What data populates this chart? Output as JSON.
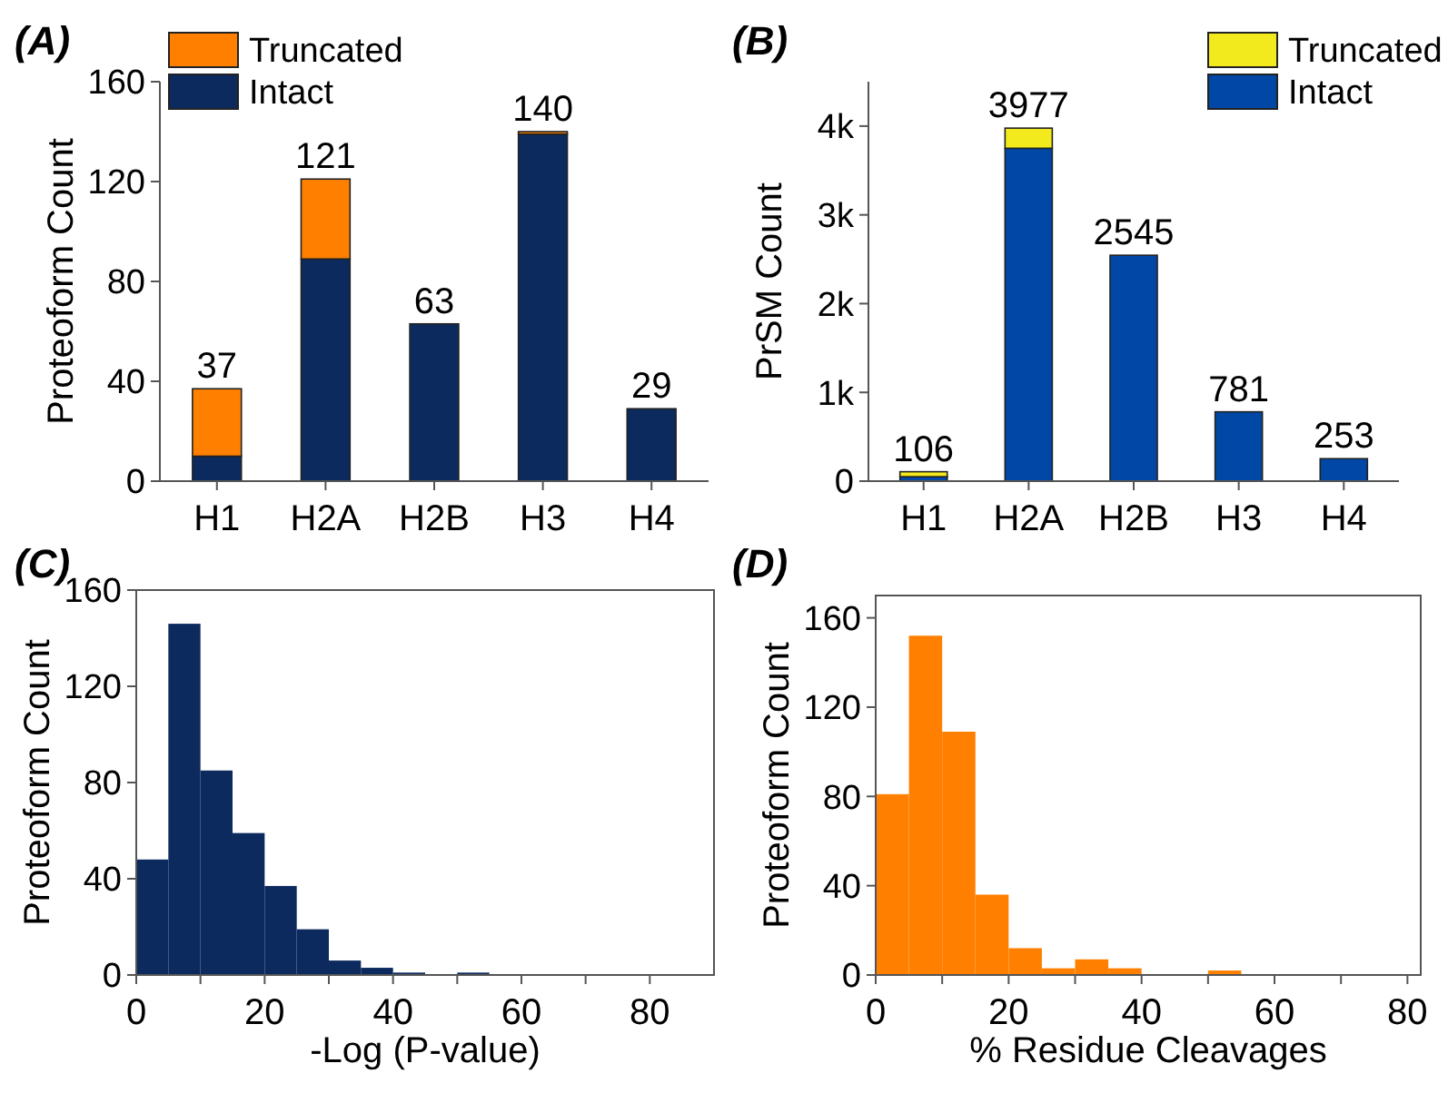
{
  "chart_data": [
    {
      "type": "bar",
      "title": "(A)",
      "ylabel": "Proteoform Count",
      "categories": [
        "H1",
        "H2A",
        "H2B",
        "H3",
        "H4"
      ],
      "stacked": true,
      "legend": "top left",
      "ylim": [
        0,
        160
      ],
      "yticks": [
        0,
        40,
        80,
        120,
        160
      ],
      "totals": [
        "37",
        "121",
        "63",
        "140",
        "29"
      ],
      "series": [
        {
          "name": "Intact",
          "color": "#0c2a5e",
          "values": [
            10,
            89,
            63,
            139,
            29
          ]
        },
        {
          "name": "Truncated",
          "color": "#ff8000",
          "values": [
            27,
            32,
            0,
            1,
            0
          ]
        }
      ]
    },
    {
      "type": "bar",
      "title": "(B)",
      "ylabel": "PrSM Count",
      "categories": [
        "H1",
        "H2A",
        "H2B",
        "H3",
        "H4"
      ],
      "stacked": true,
      "legend": "top right",
      "ylim": [
        0,
        4500
      ],
      "yticks": [
        0,
        {
          "value": 1000,
          "label": "1k"
        },
        {
          "value": 2000,
          "label": "2k"
        },
        {
          "value": 3000,
          "label": "3k"
        },
        {
          "value": 4000,
          "label": "4k"
        }
      ],
      "totals": [
        "106",
        "3977",
        "2545",
        "781",
        "253"
      ],
      "series": [
        {
          "name": "Intact",
          "color": "#0047a6",
          "values": [
            50,
            3750,
            2545,
            781,
            253
          ]
        },
        {
          "name": "Truncated",
          "color": "#f2ea1c",
          "values": [
            56,
            227,
            0,
            0,
            0
          ]
        }
      ]
    },
    {
      "type": "histogram",
      "title": "(C)",
      "xlabel": "-Log (P-value)",
      "ylabel": "Proteoform Count",
      "bins": [
        0,
        5,
        10,
        15,
        20,
        25,
        30,
        35,
        40,
        45,
        50,
        55
      ],
      "values": [
        48,
        146,
        85,
        59,
        37,
        19,
        6,
        3,
        1,
        0,
        1
      ],
      "color": "#0c2a5e",
      "xlim": [
        0,
        90
      ],
      "xticks": [
        0,
        {
          "value": 10,
          "label": null
        },
        20,
        {
          "value": 30,
          "label": null
        },
        40,
        {
          "value": 50,
          "label": null
        },
        60,
        {
          "value": 70,
          "label": null
        },
        80
      ],
      "ylim": [
        0,
        160
      ],
      "yticks": [
        0,
        40,
        80,
        120,
        160
      ]
    },
    {
      "type": "histogram",
      "title": "(D)",
      "xlabel": "% Residue Cleavages",
      "ylabel": "Proteoform Count",
      "bins": [
        0,
        5,
        10,
        15,
        20,
        25,
        30,
        35,
        40,
        45,
        50,
        55
      ],
      "values": [
        81,
        152,
        109,
        36,
        12,
        3,
        7,
        3,
        0,
        0,
        2
      ],
      "color": "#ff8000",
      "xlim": [
        0,
        82
      ],
      "xticks": [
        0,
        {
          "value": 10,
          "label": null
        },
        20,
        {
          "value": 30,
          "label": null
        },
        40,
        {
          "value": 50,
          "label": null
        },
        60,
        {
          "value": 70,
          "label": null
        },
        80
      ],
      "ylim": [
        0,
        170
      ],
      "yticks": [
        0,
        40,
        80,
        120,
        160
      ]
    }
  ]
}
